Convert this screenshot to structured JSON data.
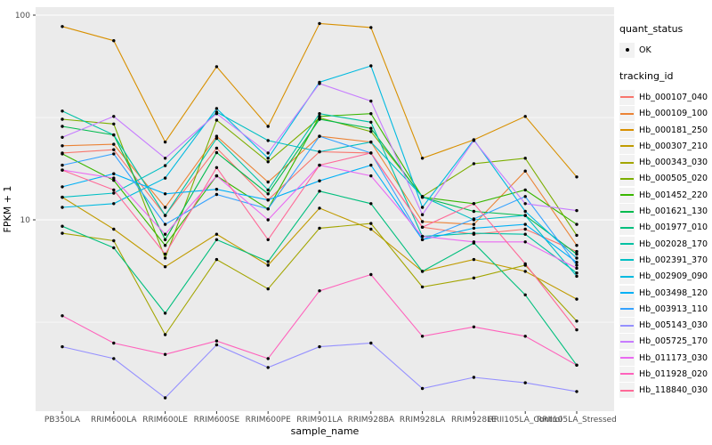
{
  "figure": {
    "x_axis_title": "sample_name",
    "y_axis_title": "FPKM + 1",
    "legend": {
      "quant_status_title": "quant_status",
      "ok_label": "OK",
      "tracking_title": "tracking_id"
    }
  },
  "chart_data": {
    "type": "line",
    "title": "",
    "xlabel": "sample_name",
    "ylabel": "FPKM + 1",
    "y_scale": "log10",
    "ylim": [
      1.2,
      110
    ],
    "y_major_ticks": [
      10,
      100
    ],
    "y_minor_gridlines": [
      3.16,
      31.6
    ],
    "grid": true,
    "legend_position": "right",
    "marker": "small black point (quant_status OK)",
    "panel_background": "#EBEBEB",
    "gridline_color": "#FFFFFF",
    "categories": [
      "PB350LA",
      "RRIM600LA",
      "RRIM600LE",
      "RRIM600SE",
      "RRIM600PE",
      "RRIM901LA",
      "RRIM928BA",
      "RRIM928LA",
      "RRIM928LE",
      "RRII105LA_Control",
      "RRII105LA_Stressed"
    ],
    "series": [
      {
        "name": "Hb_000107_040",
        "color": "#F8766D",
        "values": [
          21.2,
          22,
          10.5,
          22.4,
          12.5,
          21.5,
          21.2,
          9.2,
          8.5,
          9.0,
          7.0
        ]
      },
      {
        "name": "Hb_000109_100",
        "color": "#EB8335",
        "values": [
          23,
          23.4,
          11.5,
          25.6,
          15.3,
          25.6,
          24,
          9.8,
          9.5,
          17.3,
          7.5
        ]
      },
      {
        "name": "Hb_000181_250",
        "color": "#D89000",
        "values": [
          88,
          75,
          24,
          56,
          28.6,
          91,
          87,
          20,
          24.6,
          32,
          16.2
        ]
      },
      {
        "name": "Hb_000307_210",
        "color": "#C09B00",
        "values": [
          12.9,
          9.0,
          5.9,
          8.5,
          6.0,
          11.4,
          9.0,
          5.6,
          6.4,
          5.6,
          4.1
        ]
      },
      {
        "name": "Hb_000343_030",
        "color": "#A3A500",
        "values": [
          8.6,
          7.9,
          2.75,
          6.4,
          4.6,
          9.1,
          9.6,
          4.7,
          5.2,
          6.0,
          3.2
        ]
      },
      {
        "name": "Hb_000505_020",
        "color": "#7CAE00",
        "values": [
          31,
          29.4,
          6.5,
          30.7,
          19.2,
          31.5,
          27,
          13,
          18.8,
          20,
          8.4
        ]
      },
      {
        "name": "Hb_001452_220",
        "color": "#39B600",
        "values": [
          21,
          15.6,
          7.5,
          16.4,
          11.3,
          32,
          33,
          12.9,
          12,
          14,
          9.5
        ]
      },
      {
        "name": "Hb_001621_130",
        "color": "#00BB4E",
        "values": [
          28.6,
          26,
          8.0,
          21.3,
          13.4,
          31,
          28,
          12.9,
          11,
          10.5,
          6.8
        ]
      },
      {
        "name": "Hb_001977_010",
        "color": "#00BF7D",
        "values": [
          9.3,
          7.3,
          3.5,
          8.0,
          6.25,
          13.8,
          12,
          5.6,
          7.7,
          4.3,
          1.95
        ]
      },
      {
        "name": "Hb_002028_170",
        "color": "#00C1A3",
        "values": [
          34,
          26,
          10.5,
          25,
          14,
          33,
          30,
          8.3,
          8.6,
          8.5,
          5.5
        ]
      },
      {
        "name": "Hb_002391_370",
        "color": "#00BFC4",
        "values": [
          12.9,
          13.5,
          18.4,
          33.6,
          24.4,
          21.5,
          24,
          13,
          10,
          10.5,
          5.3
        ]
      },
      {
        "name": "Hb_002909_090",
        "color": "#00BAE0",
        "values": [
          11.5,
          12,
          16,
          35,
          20,
          47,
          56.5,
          11.5,
          24.6,
          11,
          6.5
        ]
      },
      {
        "name": "Hb_003498_120",
        "color": "#00B0F6",
        "values": [
          14.5,
          16.8,
          13.4,
          14.1,
          12.5,
          15.5,
          18.5,
          8.0,
          9.1,
          9.5,
          6.2
        ]
      },
      {
        "name": "Hb_003913_110",
        "color": "#35A2FF",
        "values": [
          18.5,
          21,
          9.5,
          13.3,
          11.3,
          25.6,
          21.2,
          8.0,
          10.1,
          13,
          6.0
        ]
      },
      {
        "name": "Hb_005143_030",
        "color": "#9590FF",
        "values": [
          2.4,
          2.1,
          1.35,
          2.45,
          1.9,
          2.4,
          2.5,
          1.5,
          1.7,
          1.6,
          1.45
        ]
      },
      {
        "name": "Hb_005725_170",
        "color": "#C77CFF",
        "values": [
          25.3,
          32,
          20,
          33,
          21.2,
          46.3,
          38,
          10.6,
          24.4,
          12,
          11.1
        ]
      },
      {
        "name": "Hb_011173_030",
        "color": "#EA6AF1",
        "values": [
          17.5,
          16,
          8.5,
          16.4,
          10,
          18.5,
          16.4,
          8.3,
          7.8,
          7.8,
          5.8
        ]
      },
      {
        "name": "Hb_011928_020",
        "color": "#FF62BC",
        "values": [
          3.4,
          2.5,
          2.2,
          2.56,
          2.1,
          4.5,
          5.4,
          2.7,
          3.0,
          2.7,
          1.95
        ]
      },
      {
        "name": "Hb_118840_030",
        "color": "#FF6A98",
        "values": [
          17.5,
          14,
          6.8,
          18,
          8.0,
          18.5,
          21.2,
          9.2,
          12,
          6.1,
          2.9
        ]
      }
    ]
  }
}
